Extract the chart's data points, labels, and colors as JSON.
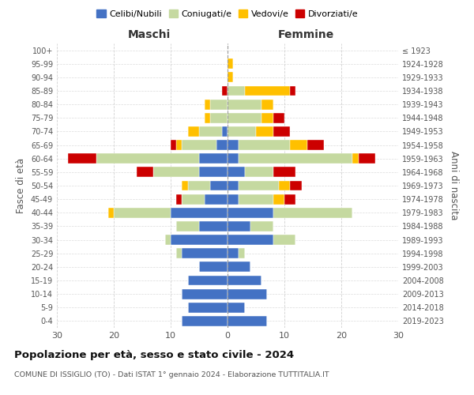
{
  "age_groups": [
    "0-4",
    "5-9",
    "10-14",
    "15-19",
    "20-24",
    "25-29",
    "30-34",
    "35-39",
    "40-44",
    "45-49",
    "50-54",
    "55-59",
    "60-64",
    "65-69",
    "70-74",
    "75-79",
    "80-84",
    "85-89",
    "90-94",
    "95-99",
    "100+"
  ],
  "birth_years": [
    "2019-2023",
    "2014-2018",
    "2009-2013",
    "2004-2008",
    "1999-2003",
    "1994-1998",
    "1989-1993",
    "1984-1988",
    "1979-1983",
    "1974-1978",
    "1969-1973",
    "1964-1968",
    "1959-1963",
    "1954-1958",
    "1949-1953",
    "1944-1948",
    "1939-1943",
    "1934-1938",
    "1929-1933",
    "1924-1928",
    "≤ 1923"
  ],
  "colors": {
    "celibi": "#4472c4",
    "coniugati": "#c5d9a0",
    "vedovi": "#ffc000",
    "divorziati": "#cc0000"
  },
  "maschi": {
    "celibi": [
      8,
      7,
      8,
      7,
      5,
      8,
      10,
      5,
      10,
      4,
      3,
      5,
      5,
      2,
      1,
      0,
      0,
      0,
      0,
      0,
      0
    ],
    "coniugati": [
      0,
      0,
      0,
      0,
      0,
      1,
      1,
      4,
      10,
      4,
      4,
      8,
      18,
      6,
      4,
      3,
      3,
      0,
      0,
      0,
      0
    ],
    "vedovi": [
      0,
      0,
      0,
      0,
      0,
      0,
      0,
      0,
      1,
      0,
      1,
      0,
      0,
      1,
      2,
      1,
      1,
      0,
      0,
      0,
      0
    ],
    "divorziati": [
      0,
      0,
      0,
      0,
      0,
      0,
      0,
      0,
      0,
      1,
      0,
      3,
      5,
      1,
      0,
      0,
      0,
      1,
      0,
      0,
      0
    ]
  },
  "femmine": {
    "celibi": [
      7,
      3,
      7,
      6,
      4,
      2,
      8,
      4,
      8,
      2,
      2,
      3,
      2,
      2,
      0,
      0,
      0,
      0,
      0,
      0,
      0
    ],
    "coniugati": [
      0,
      0,
      0,
      0,
      0,
      1,
      4,
      4,
      14,
      6,
      7,
      5,
      20,
      9,
      5,
      6,
      6,
      3,
      0,
      0,
      0
    ],
    "vedovi": [
      0,
      0,
      0,
      0,
      0,
      0,
      0,
      0,
      0,
      2,
      2,
      0,
      1,
      3,
      3,
      2,
      2,
      8,
      1,
      1,
      0
    ],
    "divorziati": [
      0,
      0,
      0,
      0,
      0,
      0,
      0,
      0,
      0,
      2,
      2,
      4,
      3,
      3,
      3,
      2,
      0,
      1,
      0,
      0,
      0
    ]
  },
  "title": "Popolazione per età, sesso e stato civile - 2024",
  "subtitle": "COMUNE DI ISSIGLIO (TO) - Dati ISTAT 1° gennaio 2024 - Elaborazione TUTTITALIA.IT",
  "xlabel_left": "Maschi",
  "xlabel_right": "Femmine",
  "ylabel_left": "Fasce di età",
  "ylabel_right": "Anni di nascita",
  "xlim": 30,
  "legend_labels": [
    "Celibi/Nubili",
    "Coniugati/e",
    "Vedovi/e",
    "Divorziati/e"
  ],
  "background_color": "#ffffff",
  "grid_color": "#cccccc"
}
